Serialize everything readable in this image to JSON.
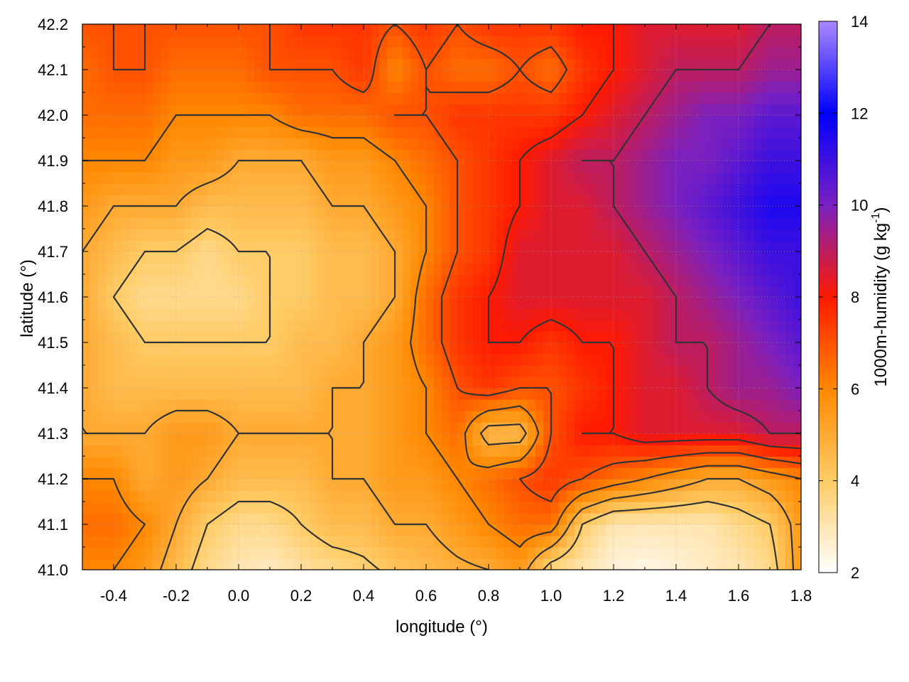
{
  "chart_data": {
    "type": "heatmap",
    "title": "",
    "xlabel": "longitude (°)",
    "ylabel": "latitude (°)",
    "xlim": [
      -0.5,
      1.8
    ],
    "ylim": [
      41.0,
      42.2
    ],
    "x_ticks": [
      "-0.4",
      "-0.2",
      "0.0",
      "0.2",
      "0.4",
      "0.6",
      "0.8",
      "1.0",
      "1.2",
      "1.4",
      "1.6",
      "1.8"
    ],
    "y_ticks": [
      "41.0",
      "41.1",
      "41.2",
      "41.3",
      "41.4",
      "41.5",
      "41.6",
      "41.7",
      "41.8",
      "41.9",
      "42.0",
      "42.1",
      "42.2"
    ],
    "grid": true,
    "colorbar": {
      "label": "1000m-humidity (g kg",
      "label_exponent": "-1",
      "label_suffix": ")",
      "range": [
        2,
        14
      ],
      "ticks": [
        "2",
        "4",
        "6",
        "8",
        "10",
        "12",
        "14"
      ],
      "palette": [
        {
          "value": 2,
          "color": "#ffffff"
        },
        {
          "value": 4,
          "color": "#ffcc66"
        },
        {
          "value": 6,
          "color": "#ff8800"
        },
        {
          "value": 8,
          "color": "#ff1a00"
        },
        {
          "value": 10,
          "color": "#7a20c0"
        },
        {
          "value": 12,
          "color": "#0000ff"
        },
        {
          "value": 14,
          "color": "#aa88ff"
        }
      ]
    },
    "contour_levels": [
      4,
      5,
      6,
      7,
      8,
      9
    ],
    "contour_color": "#333333",
    "field": {
      "x_count": 24,
      "y_count": 13,
      "x_start": -0.5,
      "x_step": 0.1,
      "y_start": 41.0,
      "y_step": 0.1,
      "rows_from_south": [
        [
          6,
          6,
          5.5,
          4.5,
          3.5,
          3,
          2.8,
          3.2,
          3.5,
          3.8,
          4.2,
          4.5,
          4.8,
          5,
          5.5,
          3.5,
          3,
          2.5,
          2.3,
          2.5,
          2.8,
          3,
          3.5,
          5.5
        ],
        [
          6.5,
          6.5,
          6,
          5,
          4,
          3.5,
          3.5,
          4,
          4.5,
          4.5,
          5,
          5,
          5.5,
          6,
          6.5,
          6.5,
          4,
          3,
          3,
          3,
          3,
          3.5,
          4,
          5.5
        ],
        [
          6,
          6,
          5,
          5.5,
          5,
          4.5,
          4.5,
          4.5,
          5,
          5,
          5.5,
          5.5,
          6,
          6.5,
          7,
          7.5,
          7,
          6.5,
          6,
          5.5,
          5,
          5,
          5.5,
          6
        ],
        [
          5,
          5,
          5,
          5.5,
          5.5,
          5,
          5,
          5,
          5,
          5,
          5.5,
          6,
          6.5,
          4.5,
          4.5,
          7,
          8,
          8,
          8.5,
          8.5,
          8.5,
          8.5,
          9,
          9
        ],
        [
          5,
          4.5,
          4.5,
          4.5,
          4.5,
          4.5,
          4.5,
          4.5,
          5,
          5,
          5.5,
          6,
          7,
          7.5,
          7,
          7,
          7.5,
          8,
          8.5,
          8.5,
          9,
          9.5,
          9.5,
          10
        ],
        [
          5,
          4.5,
          4,
          4,
          4,
          4,
          4,
          4.5,
          4.5,
          5,
          5.5,
          6.5,
          7.5,
          8,
          8,
          7.5,
          8,
          8,
          8.5,
          9,
          9,
          9.5,
          10,
          10.5
        ],
        [
          5,
          4,
          3.5,
          3.5,
          3.5,
          3.5,
          4,
          4,
          4.5,
          4.5,
          5,
          6.5,
          7.5,
          8,
          8.5,
          8.5,
          8.5,
          8.5,
          8.5,
          9,
          9.5,
          10,
          10.5,
          11
        ],
        [
          5,
          4.5,
          4,
          4,
          3.5,
          4,
          4,
          4,
          4.5,
          4.5,
          5,
          6,
          7,
          7.5,
          8.5,
          8.5,
          8.5,
          8.5,
          9,
          9.5,
          10,
          10.5,
          11,
          11
        ],
        [
          5.5,
          5,
          5,
          5,
          4.5,
          4.5,
          4.5,
          4.5,
          5,
          5,
          5.5,
          6,
          7,
          7.5,
          8,
          8.5,
          8.5,
          9,
          9.5,
          10,
          10.5,
          11,
          11.5,
          11.5
        ],
        [
          6,
          6,
          6,
          5.5,
          5.5,
          5,
          5,
          5,
          5.5,
          5.5,
          6,
          6.5,
          7,
          7.5,
          8,
          8.5,
          9,
          9,
          9.5,
          10,
          10,
          10.5,
          11,
          11
        ],
        [
          6.5,
          6.5,
          6.5,
          6,
          6,
          6,
          6,
          6.5,
          6.5,
          6.5,
          7,
          7,
          7.5,
          7.5,
          7.5,
          7.5,
          8,
          8.5,
          9,
          9.5,
          10,
          10,
          10.5,
          10.5
        ],
        [
          6.5,
          7,
          7,
          6.5,
          6.5,
          6.5,
          7,
          7,
          7,
          7.5,
          6,
          7,
          6.5,
          6.5,
          7,
          6.5,
          7.5,
          8,
          8.5,
          9,
          9,
          9,
          9.5,
          9.5
        ],
        [
          7,
          7,
          7,
          7,
          7,
          7,
          7,
          7.5,
          7.5,
          7.5,
          7,
          7.5,
          7,
          7.5,
          7.5,
          7.5,
          8,
          8,
          8.5,
          8.5,
          8.5,
          8.5,
          9,
          9
        ]
      ]
    }
  }
}
